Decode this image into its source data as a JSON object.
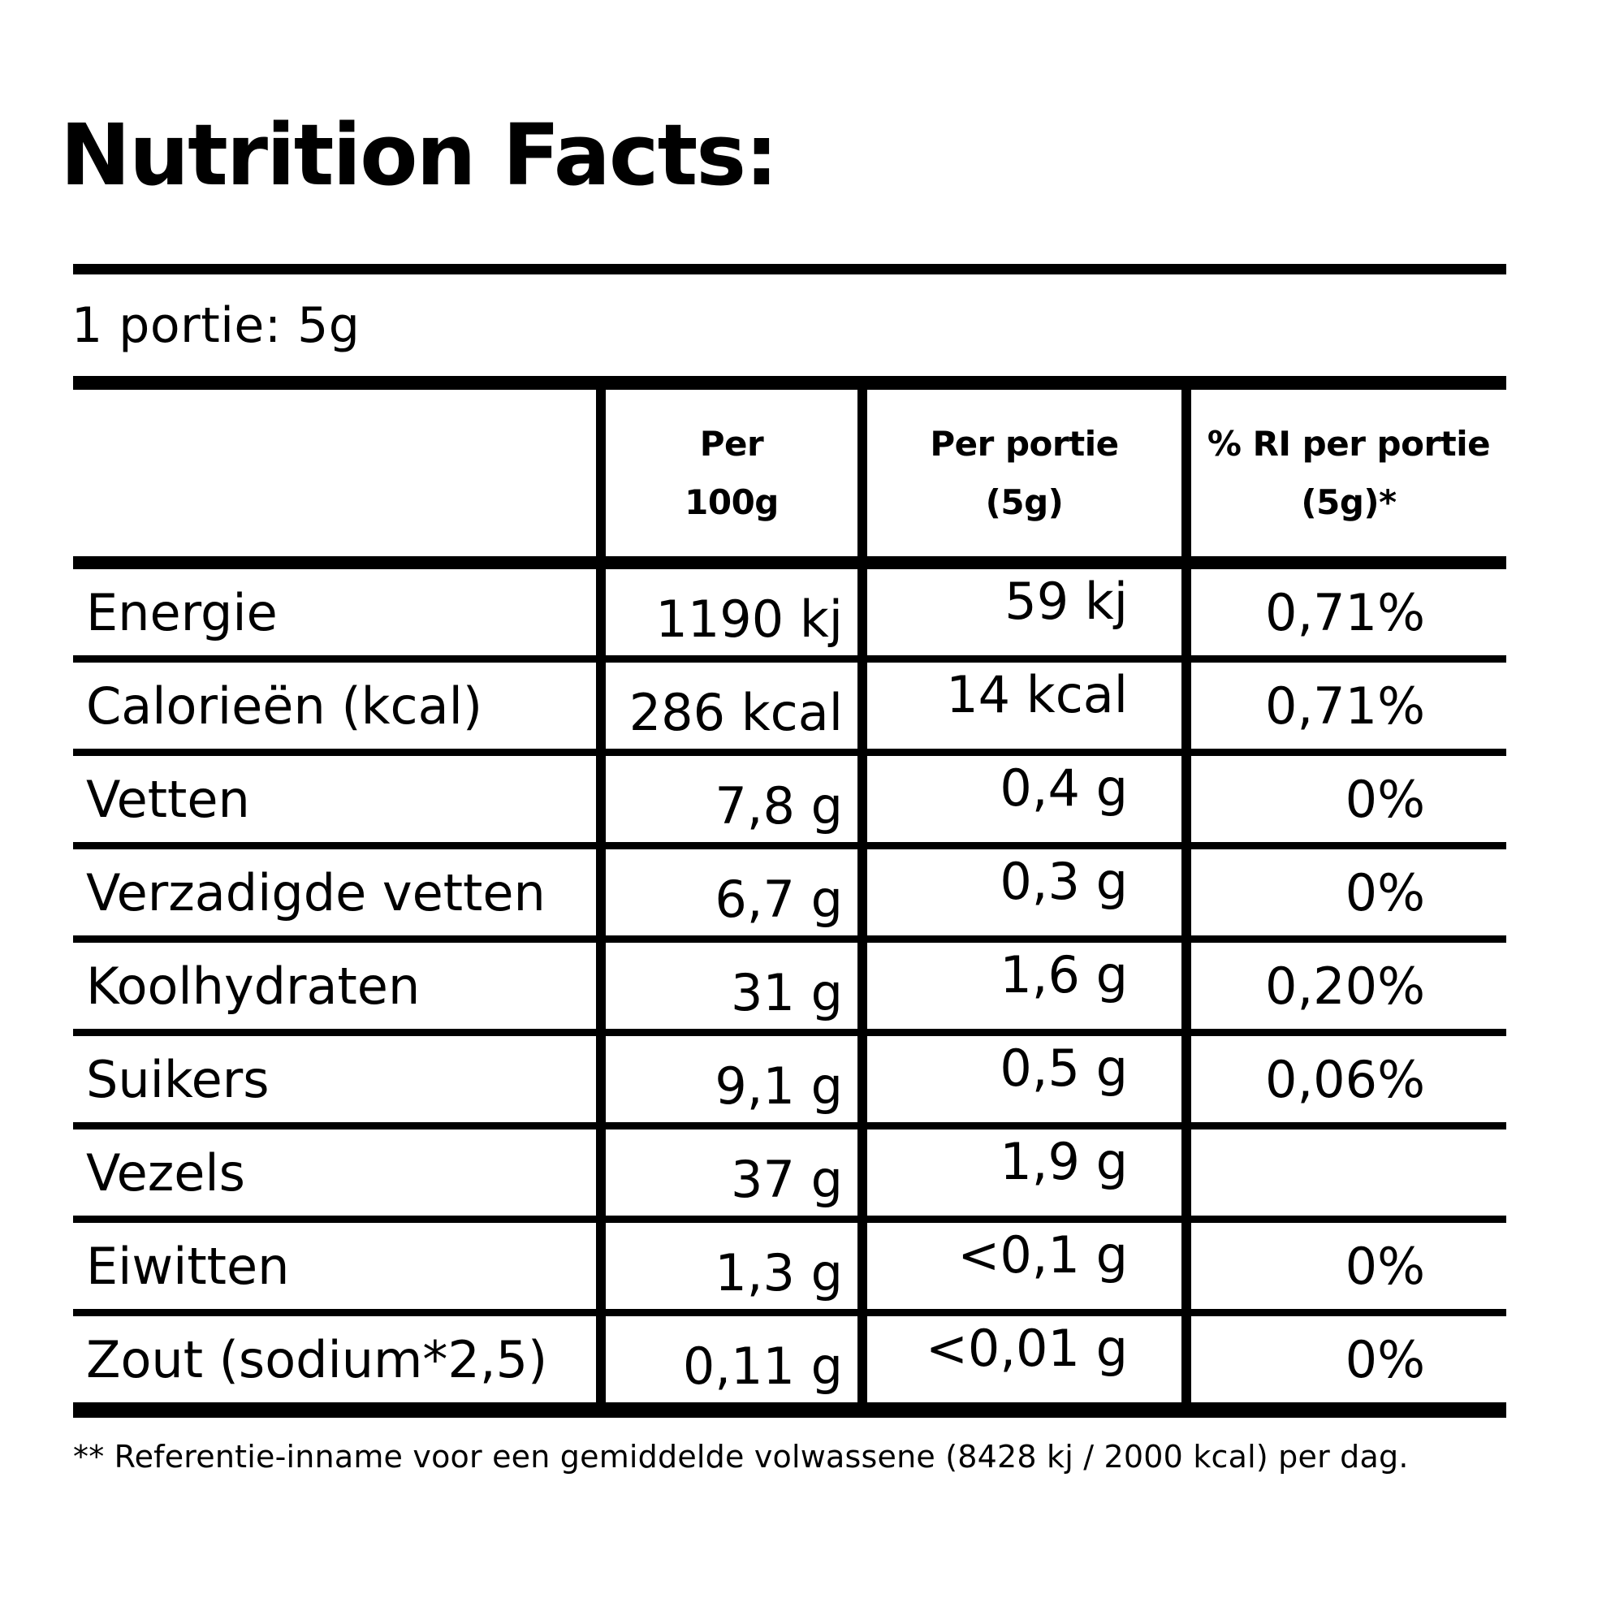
{
  "title": "Nutrition Facts:",
  "serving_line": "1 portie: 5g",
  "table": {
    "headers": {
      "per100": [
        "Per",
        "100g"
      ],
      "portion": [
        "Per portie",
        "(5g)"
      ],
      "ri": [
        "% RI per portie",
        "(5g)*"
      ]
    },
    "rows": [
      {
        "label": "Energie",
        "per100": "1190 kj",
        "portion": "59 kj",
        "ri": "0,71%"
      },
      {
        "label": "Calorieën (kcal)",
        "per100": "286 kcal",
        "portion": "14 kcal",
        "ri": "0,71%"
      },
      {
        "label": "Vetten",
        "per100": "7,8 g",
        "portion": "0,4 g",
        "ri": "0%"
      },
      {
        "label": "Verzadigde vetten",
        "per100": "6,7 g",
        "portion": "0,3 g",
        "ri": "0%"
      },
      {
        "label": "Koolhydraten",
        "per100": "31 g",
        "portion": "1,6 g",
        "ri": "0,20%"
      },
      {
        "label": "Suikers",
        "per100": "9,1 g",
        "portion": "0,5 g",
        "ri": "0,06%"
      },
      {
        "label": "Vezels",
        "per100": "37 g",
        "portion": "1,9 g",
        "ri": ""
      },
      {
        "label": "Eiwitten",
        "per100": "1,3 g",
        "portion": "<0,1 g",
        "ri": "0%"
      },
      {
        "label": "Zout (sodium*2,5)",
        "per100": "0,11 g",
        "portion": "<0,01 g",
        "ri": "0%"
      }
    ]
  },
  "footnote": "** Referentie-inname voor een gemiddelde volwassene (8428 kj / 2000 kcal) per dag.",
  "colors": {
    "text": "#000000",
    "background": "#ffffff"
  }
}
